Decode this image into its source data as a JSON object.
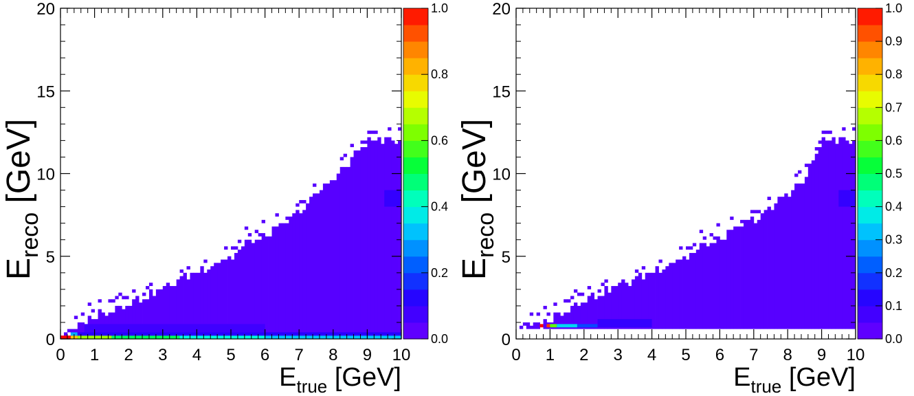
{
  "chart_data": [
    {
      "type": "heatmap",
      "title": "",
      "xlabel": {
        "main": "E",
        "sub": "true",
        "unit": " [GeV]"
      },
      "ylabel": {
        "main": "E",
        "sub": "reco",
        "unit": " [GeV]"
      },
      "xlim": [
        0,
        10
      ],
      "ylim": [
        0,
        20
      ],
      "xticks": [
        "0",
        "1",
        "2",
        "3",
        "4",
        "5",
        "6",
        "7",
        "8",
        "9",
        "10"
      ],
      "yticks": [
        "0",
        "5",
        "10",
        "15",
        "20"
      ],
      "bin_width": {
        "x": 0.1,
        "y": 0.2
      },
      "colorbar": {
        "range": [
          0,
          1
        ],
        "levels": 20,
        "ticks": [
          "0.0",
          "0.2",
          "0.4",
          "0.6",
          "0.8",
          "1.0"
        ]
      },
      "upper_edge_points": [
        [
          0.3,
          0.4
        ],
        [
          0.6,
          0.8
        ],
        [
          1,
          1.4
        ],
        [
          1.5,
          1.8
        ],
        [
          2,
          2.2
        ],
        [
          2.5,
          2.6
        ],
        [
          3,
          3
        ],
        [
          3.5,
          3.6
        ],
        [
          4,
          4
        ],
        [
          4.5,
          4.6
        ],
        [
          5,
          5
        ],
        [
          5.5,
          5.8
        ],
        [
          6,
          6.2
        ],
        [
          6.5,
          6.8
        ],
        [
          7,
          7.6
        ],
        [
          7.5,
          8.8
        ],
        [
          8,
          9.6
        ],
        [
          9,
          12
        ],
        [
          10,
          12
        ]
      ],
      "floor": 0,
      "background_value": 0.04,
      "peak_cells": [
        {
          "x": [
            0,
            0.3
          ],
          "y": [
            0,
            0.2
          ],
          "value": 1.0
        },
        {
          "x": [
            0.3,
            0.5
          ],
          "y": [
            0,
            0.2
          ],
          "value": 0.8
        },
        {
          "x": [
            0.3,
            0.5
          ],
          "y": [
            0.2,
            0.4
          ],
          "value": 0.3
        },
        {
          "x": [
            0.5,
            1.5
          ],
          "y": [
            0,
            0.2
          ],
          "value": 0.65
        },
        {
          "x": [
            1.5,
            3.5
          ],
          "y": [
            0,
            0.2
          ],
          "value": 0.5
        },
        {
          "x": [
            3.5,
            6
          ],
          "y": [
            0,
            0.2
          ],
          "value": 0.4
        },
        {
          "x": [
            6,
            10
          ],
          "y": [
            0,
            0.2
          ],
          "value": 0.33
        },
        {
          "x": [
            0.5,
            10
          ],
          "y": [
            0.2,
            0.4
          ],
          "value": 0.12
        },
        {
          "x": [
            0.7,
            6
          ],
          "y": [
            0.4,
            0.9
          ],
          "value": 0.08
        },
        {
          "x": [
            9.5,
            10
          ],
          "y": [
            8,
            9
          ],
          "value": 0.1
        }
      ]
    },
    {
      "type": "heatmap",
      "title": "",
      "xlabel": {
        "main": "E",
        "sub": "true",
        "unit": " [GeV]"
      },
      "ylabel": {
        "main": "E",
        "sub": "reco",
        "unit": " [GeV]"
      },
      "xlim": [
        0,
        10
      ],
      "ylim": [
        0,
        20
      ],
      "xticks": [
        "0",
        "1",
        "2",
        "3",
        "4",
        "5",
        "6",
        "7",
        "8",
        "9",
        "10"
      ],
      "yticks": [
        "0",
        "5",
        "10",
        "15",
        "20"
      ],
      "bin_width": {
        "x": 0.1,
        "y": 0.2
      },
      "colorbar": {
        "range": [
          0,
          1
        ],
        "levels": 20,
        "ticks": [
          "0.0",
          "0.1",
          "0.2",
          "0.3",
          "0.4",
          "0.5",
          "0.6",
          "0.7",
          "0.8",
          "0.9",
          "1.0"
        ]
      },
      "upper_edge_points": [
        [
          0.7,
          0.8
        ],
        [
          1,
          1.2
        ],
        [
          1.5,
          1.8
        ],
        [
          2,
          2.4
        ],
        [
          2.5,
          2.8
        ],
        [
          3,
          3.2
        ],
        [
          3.5,
          3.6
        ],
        [
          4,
          4
        ],
        [
          4.5,
          4.6
        ],
        [
          5,
          5
        ],
        [
          5.5,
          5.6
        ],
        [
          6,
          6
        ],
        [
          6.5,
          6.6
        ],
        [
          7,
          7.2
        ],
        [
          7.5,
          7.8
        ],
        [
          8,
          8.8
        ],
        [
          8.5,
          9.6
        ],
        [
          9,
          12
        ],
        [
          10,
          12
        ]
      ],
      "floor": 0.6,
      "background_value": 0.04,
      "peak_cells": [
        {
          "x": [
            0.7,
            0.8
          ],
          "y": [
            0.7,
            0.9
          ],
          "value": 1.0
        },
        {
          "x": [
            0.9,
            1.0
          ],
          "y": [
            0.7,
            0.9
          ],
          "value": 0.95
        },
        {
          "x": [
            1.0,
            1.2
          ],
          "y": [
            0.7,
            0.9
          ],
          "value": 0.6
        },
        {
          "x": [
            1.2,
            1.8
          ],
          "y": [
            0.7,
            0.9
          ],
          "value": 0.35
        },
        {
          "x": [
            1.8,
            2.4
          ],
          "y": [
            0.7,
            0.9
          ],
          "value": 0.2
        },
        {
          "x": [
            2.4,
            4.0
          ],
          "y": [
            0.7,
            1.2
          ],
          "value": 0.1
        },
        {
          "x": [
            9.5,
            10
          ],
          "y": [
            8,
            9
          ],
          "value": 0.1
        }
      ]
    }
  ]
}
